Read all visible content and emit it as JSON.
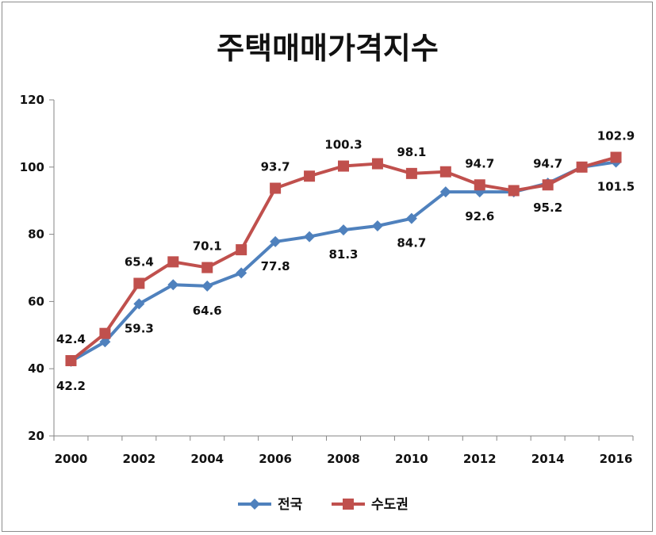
{
  "chart_data": {
    "type": "line",
    "title": "주택매매가격지수",
    "xlabel": "",
    "ylabel": "",
    "x": [
      2000,
      2001,
      2002,
      2003,
      2004,
      2005,
      2006,
      2007,
      2008,
      2009,
      2010,
      2011,
      2012,
      2013,
      2014,
      2015,
      2016
    ],
    "x_tick_labels": [
      "2000",
      "2002",
      "2004",
      "2006",
      "2008",
      "2010",
      "2012",
      "2014",
      "2016"
    ],
    "ylim": [
      20,
      120
    ],
    "y_tick_labels": [
      "20",
      "40",
      "60",
      "80",
      "100",
      "120"
    ],
    "grid": false,
    "legend_position": "bottom",
    "series": [
      {
        "name": "전국",
        "color": "#4F81BD",
        "marker": "diamond",
        "values": [
          42.2,
          48.0,
          59.3,
          65.0,
          64.6,
          68.5,
          77.8,
          79.3,
          81.3,
          82.5,
          84.7,
          92.6,
          92.6,
          92.6,
          95.2,
          100.0,
          101.5
        ],
        "data_labels": [
          {
            "x": 2000,
            "text": "42.2",
            "pos": "below"
          },
          {
            "x": 2002,
            "text": "59.3",
            "pos": "below"
          },
          {
            "x": 2004,
            "text": "64.6",
            "pos": "below"
          },
          {
            "x": 2006,
            "text": "77.8",
            "pos": "below"
          },
          {
            "x": 2008,
            "text": "81.3",
            "pos": "below"
          },
          {
            "x": 2010,
            "text": "84.7",
            "pos": "below"
          },
          {
            "x": 2012,
            "text": "92.6",
            "pos": "below"
          },
          {
            "x": 2014,
            "text": "95.2",
            "pos": "below"
          },
          {
            "x": 2016,
            "text": "101.5",
            "pos": "below"
          }
        ]
      },
      {
        "name": "수도권",
        "color": "#C0504D",
        "marker": "square",
        "values": [
          42.4,
          50.5,
          65.4,
          71.8,
          70.1,
          75.4,
          93.7,
          97.3,
          100.3,
          101.0,
          98.1,
          98.6,
          94.7,
          93.0,
          94.7,
          100.0,
          102.9
        ],
        "data_labels": [
          {
            "x": 2000,
            "text": "42.4",
            "pos": "above"
          },
          {
            "x": 2002,
            "text": "65.4",
            "pos": "above"
          },
          {
            "x": 2004,
            "text": "70.1",
            "pos": "above"
          },
          {
            "x": 2006,
            "text": "93.7",
            "pos": "above"
          },
          {
            "x": 2008,
            "text": "100.3",
            "pos": "above"
          },
          {
            "x": 2010,
            "text": "98.1",
            "pos": "above"
          },
          {
            "x": 2012,
            "text": "94.7",
            "pos": "above"
          },
          {
            "x": 2014,
            "text": "94.7",
            "pos": "above"
          },
          {
            "x": 2016,
            "text": "102.9",
            "pos": "above"
          }
        ]
      }
    ]
  }
}
